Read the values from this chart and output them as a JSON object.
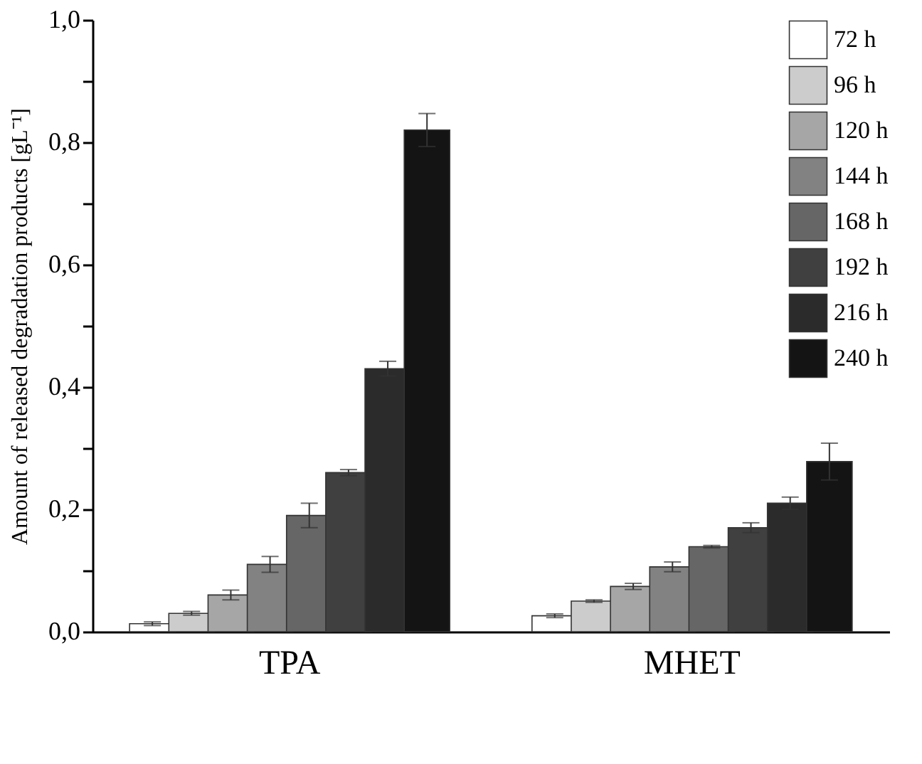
{
  "chart_data": {
    "type": "bar",
    "ylabel": "Amount of released degradation products [gL⁻¹]",
    "categories": [
      "TPA",
      "MHET"
    ],
    "series": [
      {
        "name": "72 h",
        "color": "#ffffff",
        "values": [
          0.013,
          0.026
        ],
        "errors": [
          0.003,
          0.003
        ]
      },
      {
        "name": "96 h",
        "color": "#cccccc",
        "values": [
          0.03,
          0.05
        ],
        "errors": [
          0.003,
          0.002
        ]
      },
      {
        "name": "120 h",
        "color": "#a6a6a6",
        "values": [
          0.06,
          0.074
        ],
        "errors": [
          0.008,
          0.005
        ]
      },
      {
        "name": "144 h",
        "color": "#828282",
        "values": [
          0.11,
          0.106
        ],
        "errors": [
          0.013,
          0.008
        ]
      },
      {
        "name": "168 h",
        "color": "#666666",
        "values": [
          0.19,
          0.139
        ],
        "errors": [
          0.02,
          0.002
        ]
      },
      {
        "name": "192 h",
        "color": "#404040",
        "values": [
          0.26,
          0.17
        ],
        "errors": [
          0.005,
          0.008
        ]
      },
      {
        "name": "216 h",
        "color": "#2b2b2b",
        "values": [
          0.43,
          0.21
        ],
        "errors": [
          0.012,
          0.01
        ]
      },
      {
        "name": "240 h",
        "color": "#141414",
        "values": [
          0.82,
          0.278
        ],
        "errors": [
          0.027,
          0.03
        ]
      }
    ],
    "ylim": [
      0,
      1
    ],
    "yticks": [
      {
        "value": 0,
        "label": "0,0"
      },
      {
        "value": 0.1,
        "label": null
      },
      {
        "value": 0.2,
        "label": "0,2"
      },
      {
        "value": 0.3,
        "label": null
      },
      {
        "value": 0.4,
        "label": "0,4"
      },
      {
        "value": 0.5,
        "label": null
      },
      {
        "value": 0.6,
        "label": "0,6"
      },
      {
        "value": 0.7,
        "label": null
      },
      {
        "value": 0.8,
        "label": "0,8"
      },
      {
        "value": 0.9,
        "label": null
      },
      {
        "value": 1,
        "label": "1,0"
      }
    ],
    "grid": false,
    "legend": "top right"
  }
}
